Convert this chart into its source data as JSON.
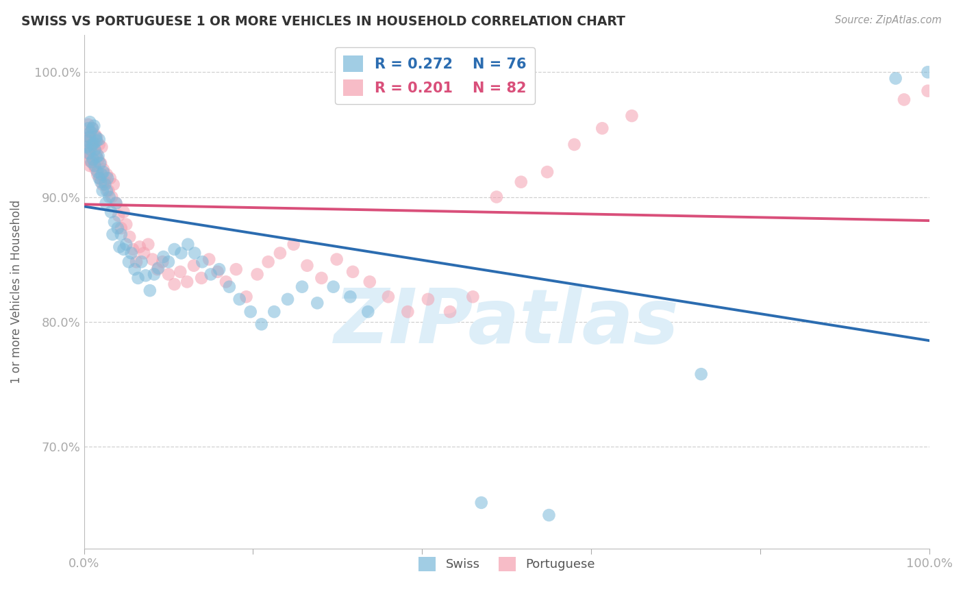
{
  "title": "SWISS VS PORTUGUESE 1 OR MORE VEHICLES IN HOUSEHOLD CORRELATION CHART",
  "source": "Source: ZipAtlas.com",
  "ylabel": "1 or more Vehicles in Household",
  "xlim": [
    0.0,
    1.0
  ],
  "ylim": [
    0.618,
    1.03
  ],
  "yticks": [
    0.7,
    0.8,
    0.9,
    1.0
  ],
  "ytick_labels": [
    "70.0%",
    "80.0%",
    "90.0%",
    "100.0%"
  ],
  "xtick_vals": [
    0.0,
    0.2,
    0.4,
    0.6,
    0.8,
    1.0
  ],
  "xtick_labels": [
    "0.0%",
    "",
    "",
    "",
    "",
    "100.0%"
  ],
  "swiss_R": 0.272,
  "swiss_N": 76,
  "port_R": 0.201,
  "port_N": 82,
  "swiss_color": "#7ab8d9",
  "port_color": "#f4a0b0",
  "swiss_line_color": "#2b6cb0",
  "port_line_color": "#d94f7a",
  "bg_color": "#ffffff",
  "grid_color": "#d0d0d0",
  "watermark_color": "#ddeef8",
  "swiss_x": [
    0.003,
    0.004,
    0.005,
    0.006,
    0.007,
    0.007,
    0.008,
    0.008,
    0.009,
    0.01,
    0.01,
    0.011,
    0.012,
    0.012,
    0.013,
    0.013,
    0.014,
    0.015,
    0.015,
    0.016,
    0.017,
    0.018,
    0.018,
    0.019,
    0.02,
    0.021,
    0.022,
    0.023,
    0.025,
    0.026,
    0.027,
    0.028,
    0.03,
    0.032,
    0.034,
    0.036,
    0.038,
    0.04,
    0.042,
    0.044,
    0.047,
    0.05,
    0.053,
    0.056,
    0.06,
    0.064,
    0.068,
    0.073,
    0.078,
    0.083,
    0.088,
    0.094,
    0.1,
    0.107,
    0.115,
    0.123,
    0.131,
    0.14,
    0.15,
    0.16,
    0.172,
    0.184,
    0.197,
    0.21,
    0.225,
    0.241,
    0.258,
    0.276,
    0.295,
    0.315,
    0.336,
    0.47,
    0.55,
    0.73,
    0.96,
    0.998
  ],
  "swiss_y": [
    0.94,
    0.945,
    0.955,
    0.935,
    0.948,
    0.96,
    0.938,
    0.952,
    0.928,
    0.942,
    0.955,
    0.93,
    0.943,
    0.957,
    0.925,
    0.938,
    0.948,
    0.932,
    0.945,
    0.92,
    0.933,
    0.946,
    0.915,
    0.927,
    0.912,
    0.918,
    0.905,
    0.92,
    0.91,
    0.895,
    0.905,
    0.915,
    0.9,
    0.888,
    0.87,
    0.88,
    0.895,
    0.875,
    0.86,
    0.87,
    0.858,
    0.862,
    0.848,
    0.855,
    0.842,
    0.835,
    0.848,
    0.837,
    0.825,
    0.838,
    0.843,
    0.852,
    0.848,
    0.858,
    0.855,
    0.862,
    0.855,
    0.848,
    0.838,
    0.842,
    0.828,
    0.818,
    0.808,
    0.798,
    0.808,
    0.818,
    0.828,
    0.815,
    0.828,
    0.82,
    0.808,
    0.655,
    0.645,
    0.758,
    0.995,
    1.0
  ],
  "port_x": [
    0.002,
    0.003,
    0.004,
    0.005,
    0.005,
    0.006,
    0.007,
    0.007,
    0.008,
    0.008,
    0.009,
    0.01,
    0.01,
    0.011,
    0.011,
    0.012,
    0.013,
    0.013,
    0.014,
    0.015,
    0.015,
    0.016,
    0.017,
    0.018,
    0.019,
    0.02,
    0.021,
    0.022,
    0.023,
    0.025,
    0.027,
    0.029,
    0.031,
    0.033,
    0.035,
    0.038,
    0.041,
    0.044,
    0.047,
    0.05,
    0.054,
    0.058,
    0.062,
    0.066,
    0.071,
    0.076,
    0.081,
    0.087,
    0.093,
    0.1,
    0.107,
    0.114,
    0.122,
    0.13,
    0.139,
    0.148,
    0.158,
    0.168,
    0.18,
    0.192,
    0.205,
    0.218,
    0.232,
    0.248,
    0.264,
    0.281,
    0.299,
    0.318,
    0.338,
    0.36,
    0.383,
    0.407,
    0.433,
    0.46,
    0.488,
    0.517,
    0.548,
    0.58,
    0.613,
    0.648,
    0.97,
    0.998
  ],
  "port_y": [
    0.935,
    0.945,
    0.93,
    0.948,
    0.958,
    0.935,
    0.948,
    0.925,
    0.94,
    0.952,
    0.928,
    0.942,
    0.955,
    0.93,
    0.943,
    0.925,
    0.938,
    0.95,
    0.922,
    0.935,
    0.948,
    0.918,
    0.93,
    0.942,
    0.915,
    0.927,
    0.94,
    0.91,
    0.922,
    0.912,
    0.918,
    0.905,
    0.915,
    0.9,
    0.91,
    0.895,
    0.885,
    0.875,
    0.888,
    0.878,
    0.868,
    0.858,
    0.848,
    0.86,
    0.855,
    0.862,
    0.85,
    0.842,
    0.848,
    0.838,
    0.83,
    0.84,
    0.832,
    0.845,
    0.835,
    0.85,
    0.84,
    0.832,
    0.842,
    0.82,
    0.838,
    0.848,
    0.855,
    0.862,
    0.845,
    0.835,
    0.85,
    0.84,
    0.832,
    0.82,
    0.808,
    0.818,
    0.808,
    0.82,
    0.9,
    0.912,
    0.92,
    0.942,
    0.955,
    0.965,
    0.978,
    0.985
  ]
}
